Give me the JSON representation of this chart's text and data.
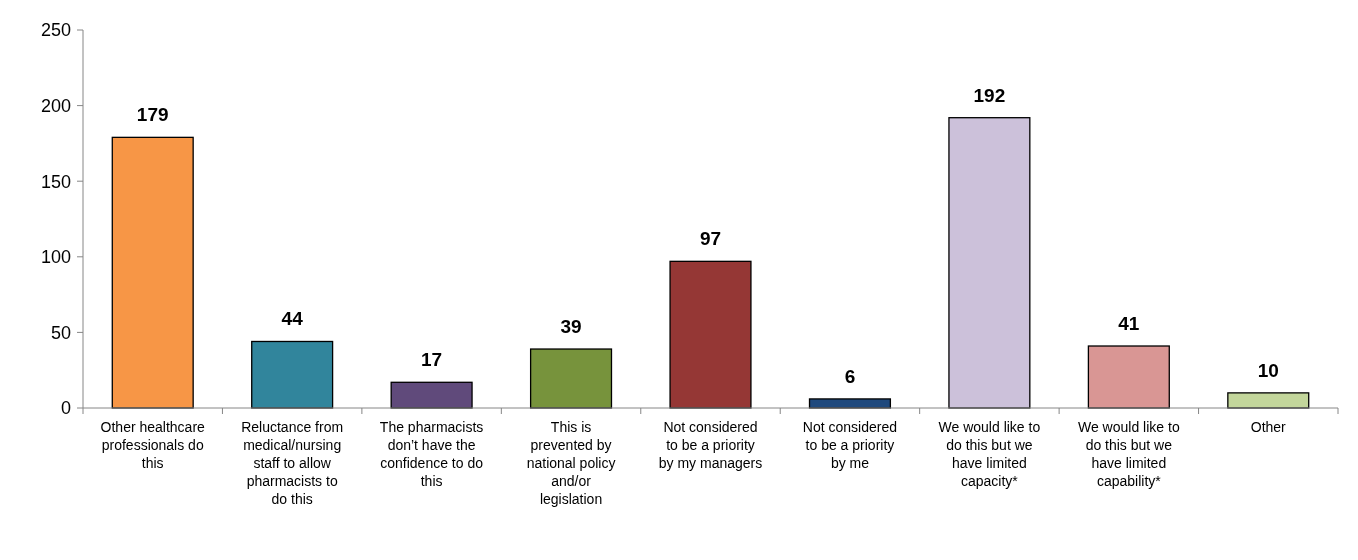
{
  "chart_data": {
    "type": "bar",
    "categories": [
      "Other healthcare professionals do this",
      "Reluctance from medical/nursing staff to allow pharmacists to do this",
      "The pharmacists don’t have the confidence to do this",
      "This is prevented by national policy and/or legislation",
      "Not considered to be a priority by my managers",
      "Not considered to be a priority by me",
      "We would like to do this but we have limited capacity*",
      "We would like to do this but we have limited capability*",
      "Other"
    ],
    "values": [
      179,
      44,
      17,
      39,
      97,
      6,
      192,
      41,
      10
    ],
    "colors": [
      "#f79646",
      "#31859c",
      "#604a7b",
      "#77933c",
      "#953735",
      "#1f497d",
      "#ccc1da",
      "#d99694",
      "#c3d69b"
    ],
    "ylim": [
      0,
      250
    ],
    "yticks": [
      0,
      50,
      100,
      150,
      200,
      250
    ],
    "data_labels": true
  }
}
